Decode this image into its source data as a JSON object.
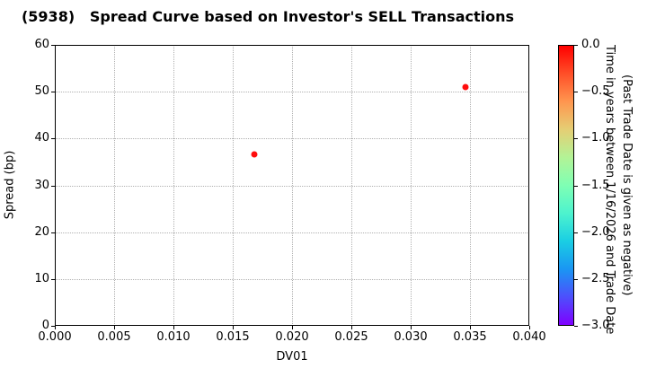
{
  "chart_data": {
    "type": "scatter",
    "title": "(5938)   Spread Curve based on Investor's SELL Transactions",
    "xlabel": "DV01",
    "ylabel": "Spread (bp)",
    "xlim": [
      0.0,
      0.04
    ],
    "ylim": [
      0,
      60
    ],
    "xtick_values": [
      0.0,
      0.005,
      0.01,
      0.015,
      0.02,
      0.025,
      0.03,
      0.035,
      0.04
    ],
    "xtick_labels": [
      "0.000",
      "0.005",
      "0.010",
      "0.015",
      "0.020",
      "0.025",
      "0.030",
      "0.035",
      "0.040"
    ],
    "ytick_values": [
      0,
      10,
      20,
      30,
      40,
      50,
      60
    ],
    "ytick_labels": [
      "0",
      "10",
      "20",
      "30",
      "40",
      "50",
      "60"
    ],
    "grid": true,
    "grid_linestyle": "dotted",
    "legend": "none",
    "points": [
      {
        "x": 0.0168,
        "y": 36.6,
        "color_value": 0.0
      },
      {
        "x": 0.0346,
        "y": 51.0,
        "color_value": 0.0
      }
    ],
    "point_color": "#ff0d0d",
    "colorbar": {
      "vmax": 0.0,
      "vmin": -3.0,
      "tick_values": [
        0.0,
        -0.5,
        -1.0,
        -1.5,
        -2.0,
        -2.5,
        -3.0
      ],
      "tick_labels": [
        "0.0",
        "−0.5",
        "−1.0",
        "−1.5",
        "−2.0",
        "−2.5",
        "−3.0"
      ],
      "label_line1": "Time in years between 1/16/2026 and Trade Date",
      "label_line2": "(Past Trade Date is given as negative)",
      "colormap": "rainbow",
      "gradient_stops": [
        {
          "pos": 0,
          "color": "#ff0000"
        },
        {
          "pos": 10,
          "color": "#ff4f28"
        },
        {
          "pos": 20,
          "color": "#ff964f"
        },
        {
          "pos": 30,
          "color": "#e5ce74"
        },
        {
          "pos": 40,
          "color": "#b3f396"
        },
        {
          "pos": 50,
          "color": "#7fffb4"
        },
        {
          "pos": 60,
          "color": "#4df3ce"
        },
        {
          "pos": 70,
          "color": "#1acee3"
        },
        {
          "pos": 80,
          "color": "#1a96f3"
        },
        {
          "pos": 90,
          "color": "#4d4ffc"
        },
        {
          "pos": 100,
          "color": "#7f00ff"
        }
      ]
    },
    "colors": {
      "grid": "#b0b0b0",
      "axis": "#000000",
      "background": "#ffffff",
      "text": "#000000"
    }
  }
}
